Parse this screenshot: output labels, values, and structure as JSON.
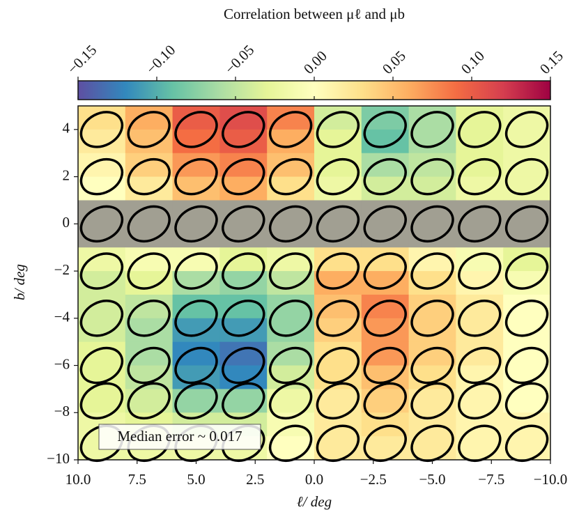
{
  "chart_data": {
    "type": "heatmap",
    "colorbar_label": "Correlation between μℓ and μb",
    "xlabel": "ℓ/ deg",
    "ylabel": "b/ deg",
    "annotation": "Median error ~ 0.017",
    "xbins": [
      10,
      8,
      6,
      4,
      2,
      0,
      -2,
      -4,
      -6,
      -8,
      -10
    ],
    "ybins": [
      5,
      4,
      3,
      2,
      1,
      0,
      -1,
      -2,
      -3,
      -4,
      -5,
      -6,
      -7,
      -8,
      -9,
      -10
    ],
    "values": [
      [
        0.03,
        0.06,
        0.1,
        0.11,
        0.08,
        -0.04,
        -0.08,
        -0.06,
        -0.03,
        -0.02
      ],
      [
        0.02,
        0.05,
        0.09,
        0.1,
        0.06,
        -0.03,
        -0.09,
        -0.06,
        -0.03,
        -0.02
      ],
      [
        0.01,
        0.04,
        0.07,
        0.08,
        0.05,
        -0.03,
        -0.06,
        -0.05,
        -0.03,
        -0.02
      ],
      [
        0.0,
        0.02,
        0.05,
        0.06,
        0.03,
        -0.02,
        -0.04,
        -0.04,
        -0.02,
        -0.02
      ],
      [
        null,
        null,
        null,
        null,
        null,
        null,
        null,
        null,
        null,
        null
      ],
      [
        null,
        null,
        null,
        null,
        null,
        null,
        null,
        null,
        null,
        null
      ],
      [
        -0.02,
        -0.01,
        -0.01,
        -0.03,
        -0.02,
        0.03,
        0.03,
        0.01,
        -0.01,
        -0.03
      ],
      [
        -0.04,
        -0.03,
        -0.06,
        -0.07,
        -0.05,
        0.06,
        0.06,
        0.03,
        0.01,
        -0.01
      ],
      [
        -0.04,
        -0.05,
        -0.09,
        -0.09,
        -0.07,
        0.05,
        0.08,
        0.04,
        0.02,
        0.0
      ],
      [
        -0.04,
        -0.06,
        -0.11,
        -0.11,
        -0.07,
        0.04,
        0.07,
        0.04,
        0.02,
        0.0
      ],
      [
        -0.03,
        -0.06,
        -0.12,
        -0.13,
        -0.06,
        0.03,
        0.07,
        0.04,
        0.02,
        0.0
      ],
      [
        -0.03,
        -0.05,
        -0.11,
        -0.12,
        -0.04,
        0.03,
        0.05,
        0.03,
        0.01,
        0.0
      ],
      [
        -0.03,
        -0.04,
        -0.07,
        -0.07,
        -0.02,
        0.02,
        0.04,
        0.02,
        0.01,
        0.0
      ],
      [
        -0.02,
        -0.03,
        -0.04,
        -0.04,
        -0.01,
        0.02,
        0.03,
        0.02,
        0.01,
        0.01
      ],
      [
        -0.02,
        -0.02,
        -0.02,
        -0.02,
        0.0,
        0.02,
        0.02,
        0.02,
        0.01,
        0.01
      ]
    ],
    "mask_color": "#a19f92",
    "colormap": [
      "#5e4fa2",
      "#3288bd",
      "#66c2a5",
      "#abdda4",
      "#e6f598",
      "#ffffbf",
      "#fee08b",
      "#fdae61",
      "#f46d43",
      "#d53e4f",
      "#9e0142"
    ],
    "zlim": [
      -0.15,
      0.15
    ],
    "zticks": [
      {
        "value": -0.15,
        "label": "−0.15"
      },
      {
        "value": -0.1,
        "label": "−0.10"
      },
      {
        "value": -0.05,
        "label": "−0.05"
      },
      {
        "value": 0,
        "label": "0.00"
      },
      0.05,
      {
        "value": 0.1,
        "label": "0.10"
      },
      0.15
    ],
    "ellipse_l": [
      9,
      7,
      5,
      3,
      1,
      -1,
      -3,
      -5,
      -7,
      -9
    ],
    "ellipse_b": [
      4,
      2,
      0,
      -2,
      -4,
      -6,
      -7.5,
      -9.3
    ],
    "xlim": [
      10,
      -10
    ],
    "xticks": [
      {
        "value": 10,
        "label": "10.0"
      },
      7.5,
      {
        "value": 5,
        "label": "5.0"
      },
      2.5,
      {
        "value": 0,
        "label": "0.0"
      },
      {
        "value": -2.5,
        "label": "−2.5"
      },
      {
        "value": -5,
        "label": "−5.0"
      },
      {
        "value": -7.5,
        "label": "−7.5"
      },
      {
        "value": -10,
        "label": "−10.0"
      }
    ],
    "ylim": [
      -10,
      5
    ],
    "yticks": [
      {
        "value": -10,
        "label": "−10"
      },
      {
        "value": -8,
        "label": "−8"
      },
      {
        "value": -6,
        "label": "−6"
      },
      {
        "value": -4,
        "label": "−4"
      },
      {
        "value": -2,
        "label": "−2"
      },
      0,
      2,
      4
    ]
  }
}
